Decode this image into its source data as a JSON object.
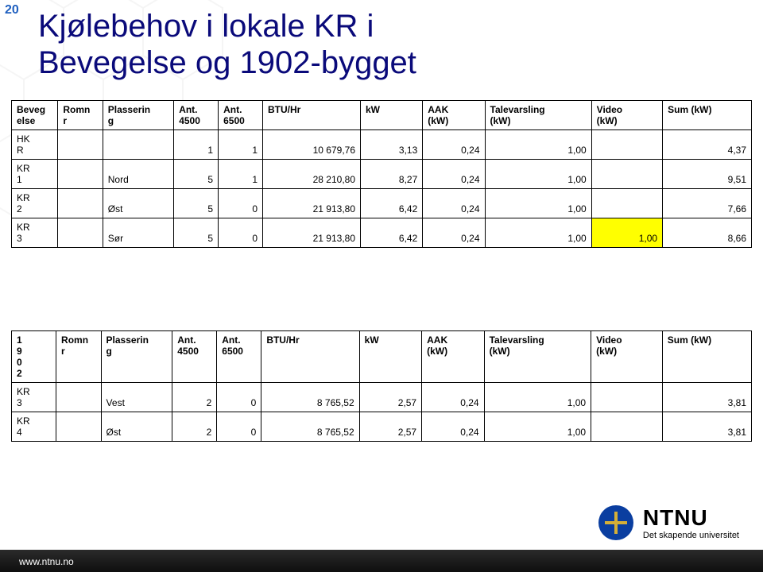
{
  "page_number": "20",
  "title_line1": "Kjølebehov i lokale KR i",
  "title_line2": "Bevegelse og 1902-bygget",
  "colors": {
    "title": "#0a0a7a",
    "pagenum": "#1f5fbf",
    "highlight": "#ffff00",
    "logo_blue": "#0a3ea0",
    "logo_gold": "#d4af37",
    "footer_bg": "#1a1a1a"
  },
  "columns": [
    {
      "key": "col0",
      "label": ""
    },
    {
      "key": "col1",
      "label": "Romn\nr"
    },
    {
      "key": "col2",
      "label": "Plasserin\ng"
    },
    {
      "key": "col3",
      "label": "Ant.\n4500"
    },
    {
      "key": "col4",
      "label": "Ant.\n6500"
    },
    {
      "key": "col5",
      "label": "BTU/Hr"
    },
    {
      "key": "col6",
      "label": "kW"
    },
    {
      "key": "col7",
      "label": "AAK\n(kW)"
    },
    {
      "key": "col8",
      "label": "Talevarsling\n(kW)"
    },
    {
      "key": "col9",
      "label": "Video\n(kW)"
    },
    {
      "key": "col10",
      "label": "Sum (kW)"
    }
  ],
  "table1": {
    "header0": "Beveg\nelse",
    "rows": [
      {
        "c0": "HK\nR",
        "c1": "",
        "c2": "",
        "c3": "1",
        "c4": "1",
        "c5": "10 679,76",
        "c6": "3,13",
        "c7": "0,24",
        "c8": "1,00",
        "c9": "",
        "c10": "4,37",
        "hl": false
      },
      {
        "c0": "KR\n1",
        "c1": "",
        "c2": "Nord",
        "c3": "5",
        "c4": "1",
        "c5": "28 210,80",
        "c6": "8,27",
        "c7": "0,24",
        "c8": "1,00",
        "c9": "",
        "c10": "9,51",
        "hl": false
      },
      {
        "c0": "KR\n2",
        "c1": "",
        "c2": "Øst",
        "c3": "5",
        "c4": "0",
        "c5": "21 913,80",
        "c6": "6,42",
        "c7": "0,24",
        "c8": "1,00",
        "c9": "",
        "c10": "7,66",
        "hl": false
      },
      {
        "c0": "KR\n3",
        "c1": "",
        "c2": "Sør",
        "c3": "5",
        "c4": "0",
        "c5": "21 913,80",
        "c6": "6,42",
        "c7": "0,24",
        "c8": "1,00",
        "c9": "1,00",
        "c10": "8,66",
        "hl": true
      }
    ]
  },
  "table2": {
    "header0": "1\n9\n0\n2",
    "rows": [
      {
        "c0": "KR\n3",
        "c1": "",
        "c2": "Vest",
        "c3": "2",
        "c4": "0",
        "c5": "8 765,52",
        "c6": "2,57",
        "c7": "0,24",
        "c8": "1,00",
        "c9": "",
        "c10": "3,81",
        "hl": false
      },
      {
        "c0": "KR\n4",
        "c1": "",
        "c2": "Øst",
        "c3": "2",
        "c4": "0",
        "c5": "8 765,52",
        "c6": "2,57",
        "c7": "0,24",
        "c8": "1,00",
        "c9": "",
        "c10": "3,81",
        "hl": false
      }
    ]
  },
  "logo": {
    "name": "NTNU",
    "tagline": "Det skapende universitet"
  },
  "footer": {
    "url": "www.ntnu.no"
  },
  "col_widths_pct": [
    5,
    5,
    8,
    5,
    5,
    11,
    7,
    7,
    12,
    8,
    10
  ]
}
